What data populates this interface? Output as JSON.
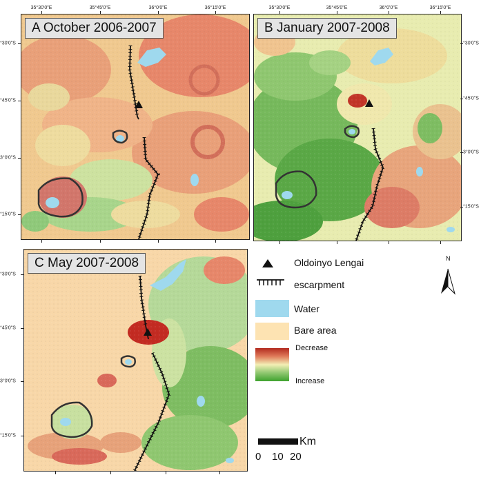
{
  "panels": [
    {
      "id": "A",
      "title": "A   October 2006-2007",
      "top_ticks": [
        "35°30'0\"E",
        "35°45'0\"E",
        "36°0'0\"E",
        "36°15'0\"E"
      ],
      "left_ticks": [
        "°30'0\"S",
        "°45'0\"S",
        "3°0'0\"S",
        "°15'0\"S"
      ]
    },
    {
      "id": "B",
      "title": "B   January 2007-2008",
      "top_ticks": [
        "35°30'0\"E",
        "35°45'0\"E",
        "36°0'0\"E",
        "36°15'0\"E"
      ],
      "left_ticks": []
    },
    {
      "id": "C",
      "title": "C   May 2007-2008",
      "top_ticks": [],
      "left_ticks": [
        "°30'0\"S",
        "°45'0\"S",
        "3°0'0\"S",
        "°15'0\"S"
      ]
    }
  ],
  "right_ticks_B": [
    "°30'0\"S",
    "°45'0\"S",
    "3°0'0\"S",
    "°15'0\"S"
  ],
  "legend": {
    "volcano": "Oldoinyo Lengai",
    "escarpment": "escarpment",
    "water": "Water",
    "bare": "Bare area",
    "decrease": "Decrease",
    "increase": "Increase",
    "north": "N",
    "scale_unit": "Km",
    "scale_values": [
      "0",
      "10",
      "20"
    ]
  },
  "colors": {
    "water": "#9fd9ee",
    "bare": "#fde3b2",
    "decrease": "#b22a1e",
    "mid": "#f2efb5",
    "increase": "#3ea22e"
  }
}
